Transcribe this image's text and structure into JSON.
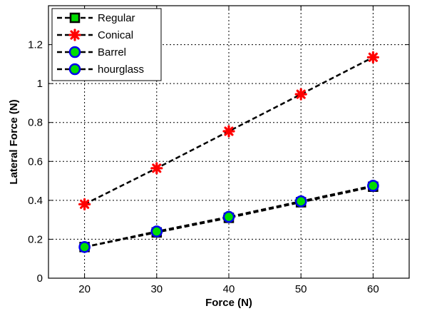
{
  "chart_data": {
    "type": "line",
    "xlabel": "Force (N)",
    "ylabel": "Lateral Force (N)",
    "xlim": [
      15,
      65
    ],
    "ylim": [
      0,
      1.4
    ],
    "x_ticks": [
      20,
      30,
      40,
      50,
      60
    ],
    "y_ticks": [
      0,
      0.2,
      0.4,
      0.6,
      0.8,
      1,
      1.2
    ],
    "x_tick_labels": [
      "20",
      "30",
      "40",
      "50",
      "60"
    ],
    "y_tick_labels": [
      "0",
      "0.2",
      "0.4",
      "0.6",
      "0.8",
      "1",
      "1.2"
    ],
    "grid": true,
    "legend_position": "top-left",
    "x": [
      20,
      30,
      40,
      50,
      60
    ],
    "series": [
      {
        "name": "Regular",
        "values": [
          0.16,
          0.235,
          0.31,
          0.39,
          0.47
        ],
        "marker": "square",
        "marker_fill": "#00dd00",
        "marker_edge": "#000000"
      },
      {
        "name": "Conical",
        "values": [
          0.38,
          0.565,
          0.755,
          0.945,
          1.135
        ],
        "marker": "star",
        "marker_fill": "#ff0000",
        "marker_edge": "#ff0000"
      },
      {
        "name": "Barrel",
        "values": [
          0.16,
          0.24,
          0.315,
          0.395,
          0.475
        ],
        "marker": "circle",
        "marker_fill": "#00dd00",
        "marker_edge": "#0000ee"
      },
      {
        "name": "hourglass",
        "values": [
          0.16,
          0.24,
          0.315,
          0.395,
          0.475
        ],
        "marker": "circle",
        "marker_fill": "#00dd00",
        "marker_edge": "#0000ee"
      }
    ],
    "line_style": "dashed",
    "line_color": "#000000"
  }
}
